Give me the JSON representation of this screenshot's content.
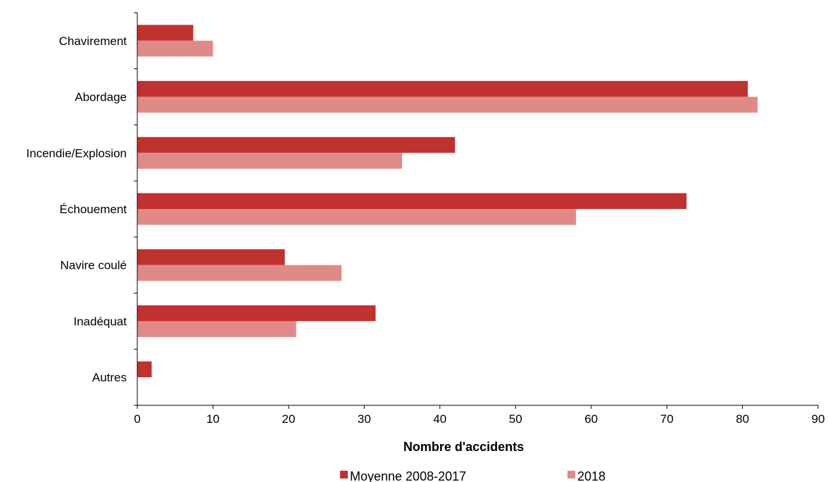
{
  "chart_data": {
    "type": "bar",
    "orientation": "horizontal",
    "categories": [
      "Chavirement",
      "Abordage",
      "Incendie/Explosion",
      "Échouement",
      "Navire coulé",
      "Inadéquat",
      "Autres"
    ],
    "series": [
      {
        "name": "Moyenne 2008-2017",
        "color": "#c0312f",
        "values": [
          7.4,
          80.7,
          42,
          72.6,
          19.5,
          31.5,
          1.9
        ]
      },
      {
        "name": "2018",
        "color": "#e08a88",
        "values": [
          10,
          82,
          35,
          58,
          27,
          21,
          0
        ]
      }
    ],
    "xlabel": "Nombre d'accidents",
    "ylabel": "",
    "xlim": [
      0,
      90
    ],
    "xticks": [
      "0",
      "10",
      "20",
      "30",
      "40",
      "50",
      "60",
      "70",
      "80",
      "90"
    ],
    "grid": false,
    "legend_position": "bottom"
  }
}
